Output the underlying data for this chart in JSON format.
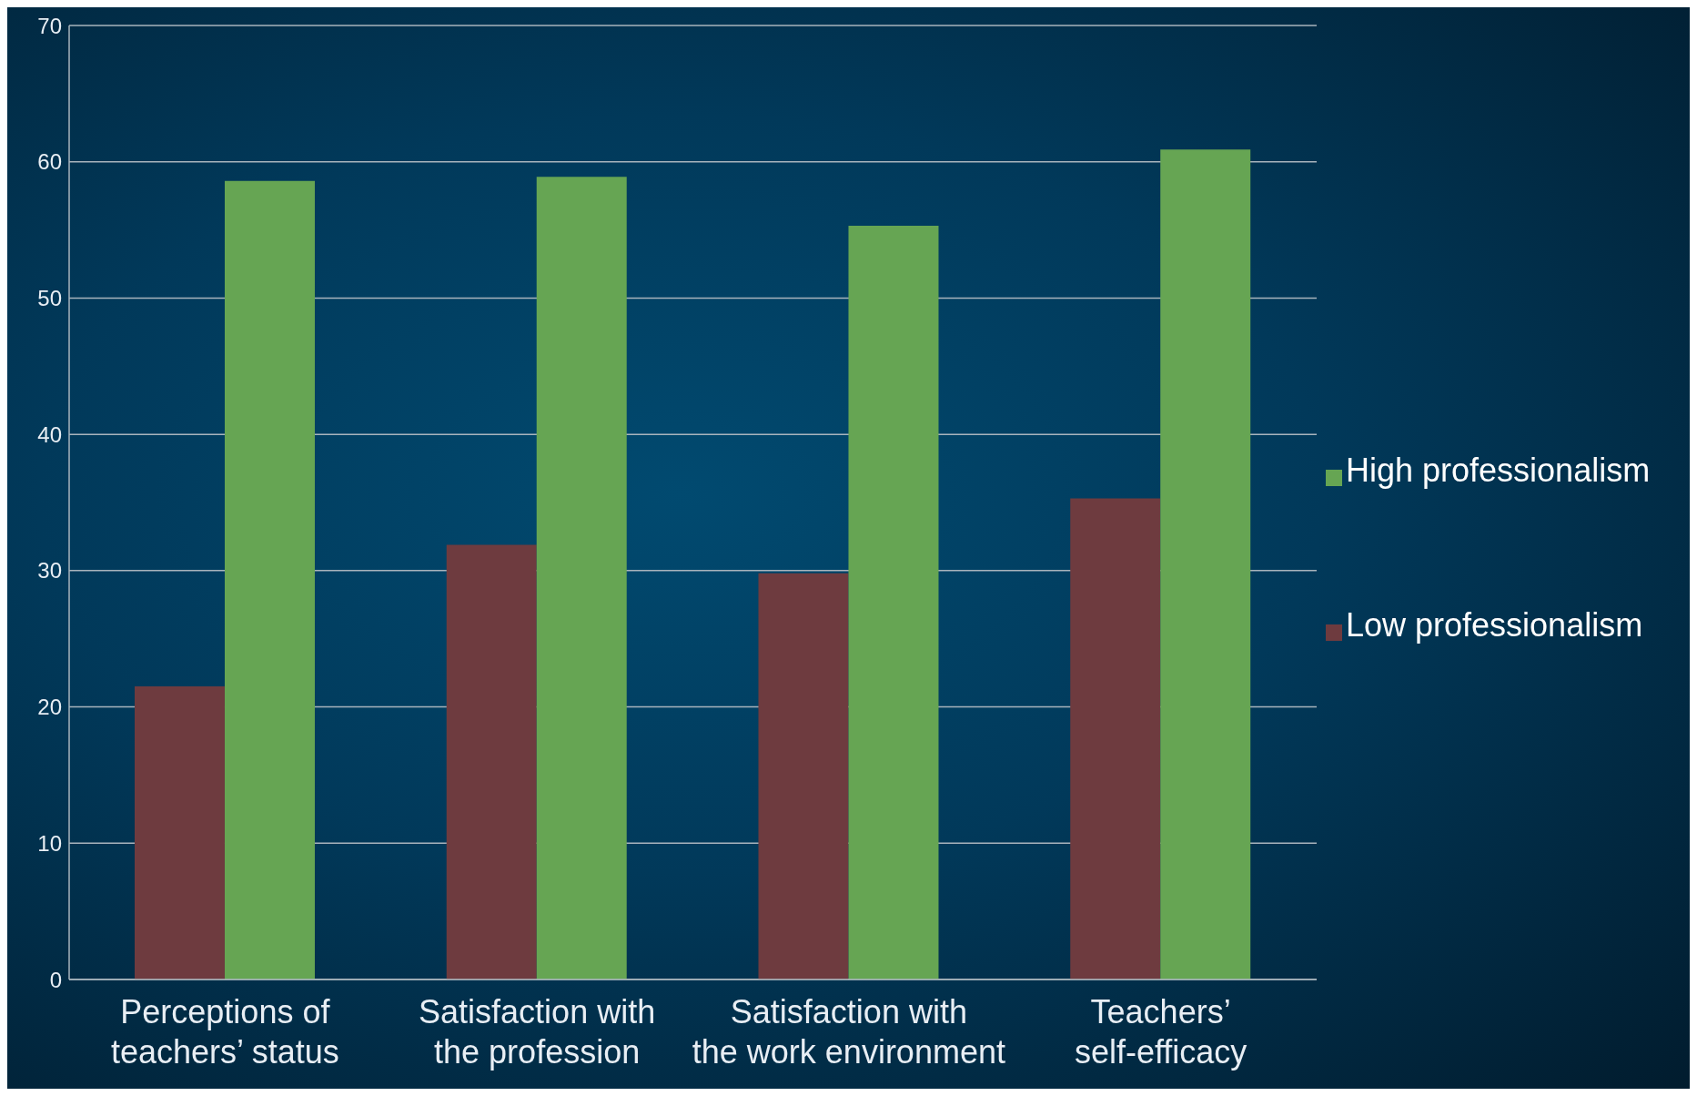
{
  "chart_data": {
    "type": "bar",
    "categories": [
      "Perceptions of teachers’ status",
      "Satisfaction with the profession",
      "Satisfaction with the work environment",
      "Teachers’ self-efficacy"
    ],
    "series": [
      {
        "name": "Low professionalism",
        "color": "#6e3b3f",
        "values": [
          21.5,
          31.9,
          29.8,
          35.3
        ]
      },
      {
        "name": "High professionalism",
        "color": "#66a553",
        "values": [
          58.6,
          58.9,
          55.3,
          60.9
        ]
      }
    ],
    "ylim": [
      0,
      70
    ],
    "yticks": [
      0,
      10,
      20,
      30,
      40,
      50,
      60,
      70
    ],
    "grid": "y",
    "legend": "right"
  }
}
